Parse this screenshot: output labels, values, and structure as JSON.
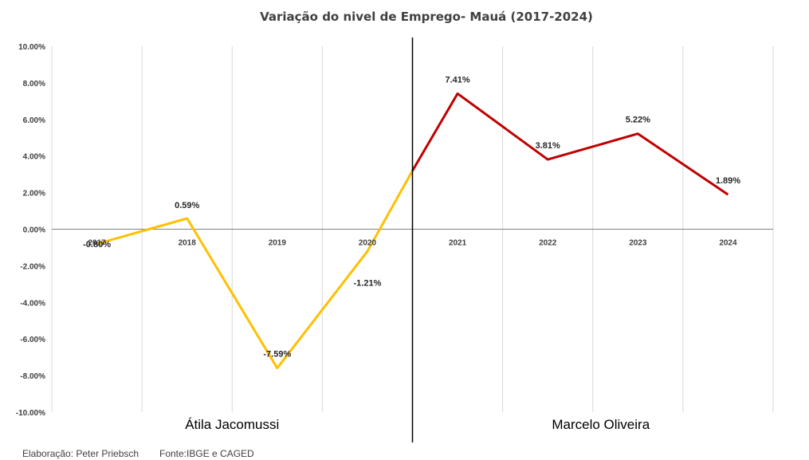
{
  "chart_data": {
    "type": "line",
    "title": "Variação do nivel de Emprego- Mauá (2017-2024)",
    "categories": [
      "2017",
      "2018",
      "2019",
      "2020",
      "2021",
      "2022",
      "2023",
      "2024"
    ],
    "series": [
      {
        "color": "#FFC000",
        "points": [
          {
            "x": "2017",
            "y": -0.8
          },
          {
            "x": "2018",
            "y": 0.59
          },
          {
            "x": "2019",
            "y": -7.59
          },
          {
            "x": "2020",
            "y": -1.21
          },
          {
            "x": "2020.5",
            "y": 3.2
          }
        ]
      },
      {
        "color": "#C00000",
        "points": [
          {
            "x": "2020.5",
            "y": 3.2
          },
          {
            "x": "2021",
            "y": 7.41
          },
          {
            "x": "2022",
            "y": 3.81
          },
          {
            "x": "2023",
            "y": 5.22
          },
          {
            "x": "2024",
            "y": 1.89
          }
        ]
      }
    ],
    "data_labels": [
      {
        "x": "2017",
        "text": "-0.80%"
      },
      {
        "x": "2018",
        "text": "0.59%"
      },
      {
        "x": "2019",
        "text": "-7.59%"
      },
      {
        "x": "2020",
        "text": "-1.21%"
      },
      {
        "x": "2021",
        "text": "7.41%"
      },
      {
        "x": "2022",
        "text": "3.81%"
      },
      {
        "x": "2023",
        "text": "5.22%"
      },
      {
        "x": "2024",
        "text": "1.89%"
      }
    ],
    "yticks": [
      "10.00%",
      "8.00%",
      "6.00%",
      "4.00%",
      "2.00%",
      "0.00%",
      "-2.00%",
      "-4.00%",
      "-6.00%",
      "-8.00%",
      "-10.00%"
    ],
    "ylim": [
      -10,
      10
    ],
    "grid": "vertical",
    "period_divider_after": "2020",
    "periods": [
      "Átila Jacomussi",
      "Marcelo Oliveira"
    ],
    "xlabel": "",
    "ylabel": ""
  },
  "footer": {
    "credit": "Elaboração: Peter Priebsch",
    "source": "Fonte:IBGE e CAGED"
  },
  "colors": {
    "period_1": "#FFC000",
    "period_2": "#C00000",
    "grid": "#D9D9D9",
    "axis": "#808080",
    "divider": "#000000"
  }
}
